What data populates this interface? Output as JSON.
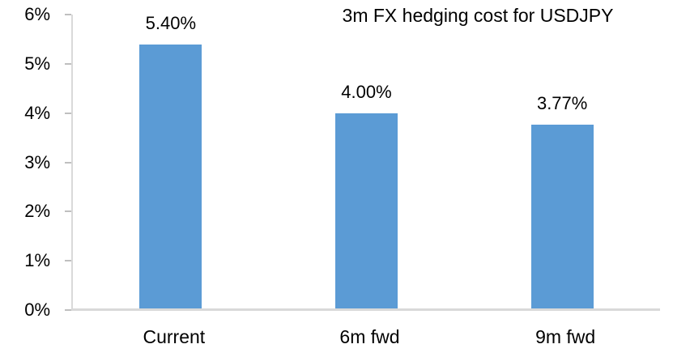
{
  "chart_data": {
    "type": "bar",
    "title": "3m FX hedging cost for USDJPY",
    "categories": [
      "Current",
      "6m fwd",
      "9m fwd"
    ],
    "values": [
      5.4,
      4.0,
      3.77
    ],
    "value_labels": [
      "5.40%",
      "4.00%",
      "3.77%"
    ],
    "xlabel": "",
    "ylabel": "",
    "ylim": [
      0,
      6
    ],
    "y_tick_step": 1,
    "y_tick_labels": [
      "0%",
      "1%",
      "2%",
      "3%",
      "4%",
      "5%",
      "6%"
    ],
    "grid": "off",
    "legend": "none",
    "bar_color": "#5B9BD5",
    "axis_line_color": "#D9D9D9",
    "tick_mark_color": "#BFBFBF",
    "text_color": "#000000",
    "background_color": "#FFFFFF"
  }
}
